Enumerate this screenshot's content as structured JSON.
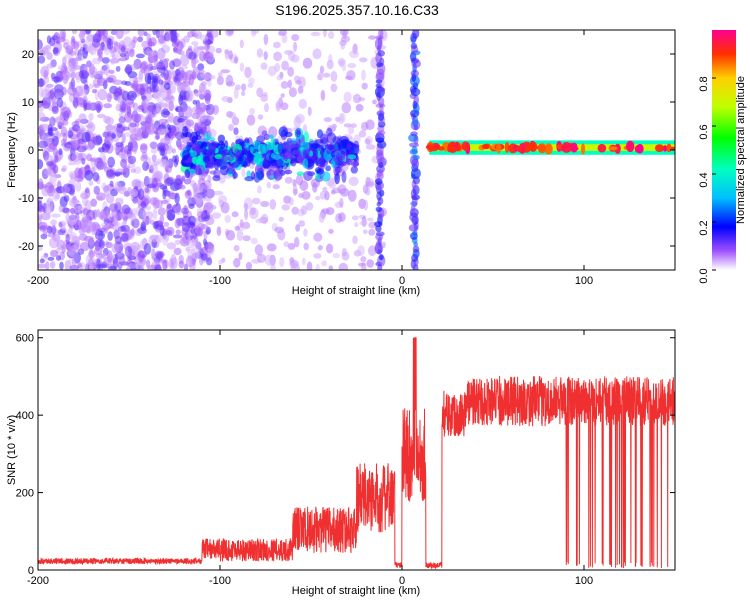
{
  "title": "S196.2025.357.10.16.C33",
  "chart_data": [
    {
      "type": "heatmap",
      "xlabel": "Height of straight line (km)",
      "ylabel": "Frequency (Hz)",
      "xlim": [
        -200,
        150
      ],
      "ylim": [
        -25,
        25
      ],
      "xticks": [
        -200,
        -100,
        0,
        100
      ],
      "yticks": [
        -20,
        -10,
        0,
        10,
        20
      ],
      "colorbar": {
        "label": "Normalized spectral amplitude",
        "ticks": [
          0.0,
          0.2,
          0.4,
          0.6,
          0.8
        ],
        "range": [
          0,
          1
        ]
      },
      "features": [
        {
          "name": "noise",
          "x_range": [
            -200,
            -110
          ],
          "amplitude": 0.15
        },
        {
          "name": "transition band",
          "x_range": [
            -120,
            -25
          ],
          "freq_center": -1,
          "amplitude": 0.4
        },
        {
          "name": "vertical streak",
          "x": -12,
          "amplitude": 0.15
        },
        {
          "name": "vertical streak",
          "x": 7,
          "amplitude": 0.2
        },
        {
          "name": "strong line",
          "x_range": [
            15,
            150
          ],
          "freq_center": 0.5,
          "amplitude": 0.95
        }
      ]
    },
    {
      "type": "line",
      "xlabel": "Height of straight line (km)",
      "ylabel": "SNR (10 * v/v)",
      "xlim": [
        -200,
        150
      ],
      "ylim": [
        0,
        620
      ],
      "xticks": [
        -200,
        -100,
        0,
        100
      ],
      "yticks": [
        0,
        200,
        400,
        600
      ],
      "color": "#f03030",
      "segments": [
        {
          "x": [
            -200,
            -110
          ],
          "base": 20,
          "spread": 15
        },
        {
          "x": [
            -110,
            -60
          ],
          "base": 40,
          "spread": 60
        },
        {
          "x": [
            -60,
            -25
          ],
          "base": 80,
          "spread": 120
        },
        {
          "x": [
            -25,
            0
          ],
          "base": 150,
          "spread": 180
        },
        {
          "x": [
            0,
            22
          ],
          "base": 250,
          "spread": 250
        },
        {
          "x": [
            22,
            35
          ],
          "base": 380,
          "spread": 120
        },
        {
          "x": [
            35,
            150
          ],
          "base": 410,
          "spread": 130
        }
      ]
    }
  ]
}
